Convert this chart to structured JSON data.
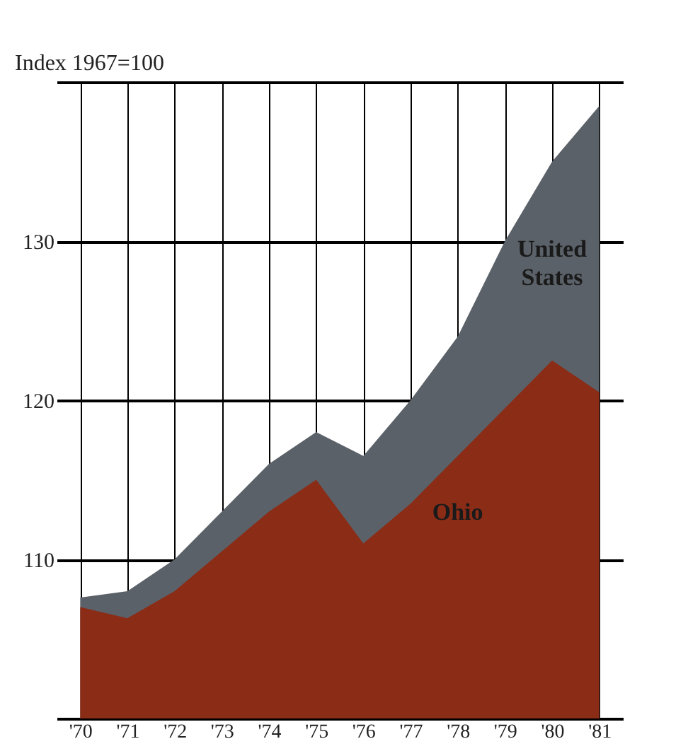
{
  "chart_data": {
    "type": "area",
    "ylabel": "Index 1967=100",
    "categories": [
      "'70",
      "'71",
      "'72",
      "'73",
      "'74",
      "'75",
      "'76",
      "'77",
      "'78",
      "'79",
      "'80",
      "'81"
    ],
    "series": [
      {
        "name": "United States",
        "color": "#5b6168",
        "values": [
          107.6,
          108,
          110,
          113,
          116,
          118,
          116.5,
          120,
          124,
          130,
          135,
          138.5
        ]
      },
      {
        "name": "Ohio",
        "color": "#8b2c16",
        "values": [
          107,
          106.3,
          108,
          110.5,
          113,
          115,
          111,
          113.5,
          116.5,
          119.5,
          122.5,
          120.5
        ]
      }
    ],
    "ylim": [
      100,
      140
    ],
    "yticks": [
      {
        "value": 100,
        "label": null
      },
      110,
      120,
      130,
      {
        "value": 140,
        "label": null
      }
    ],
    "grid": true
  }
}
